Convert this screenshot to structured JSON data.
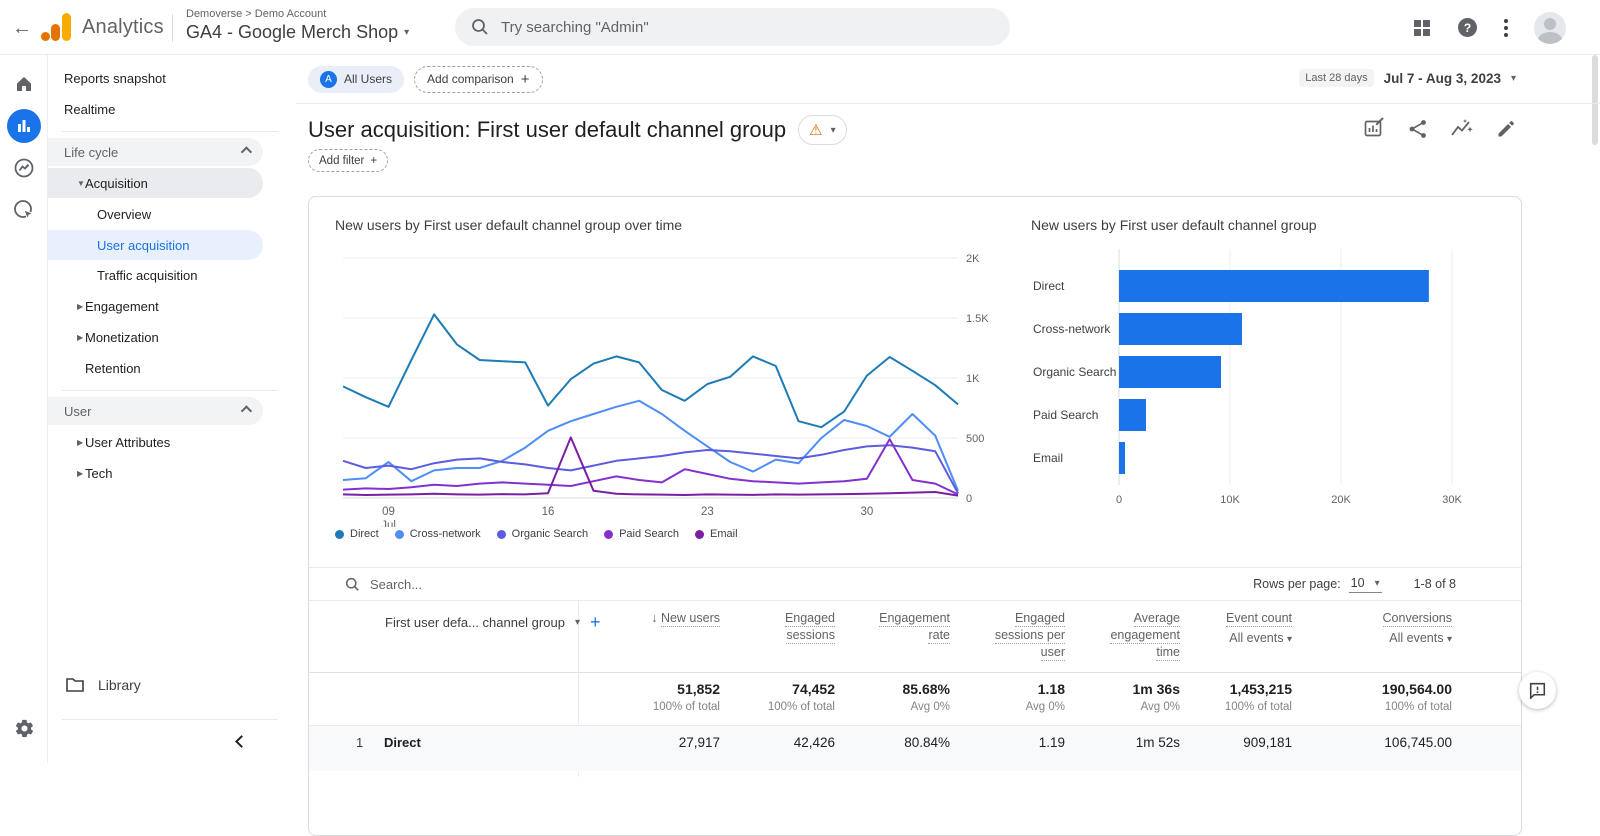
{
  "header": {
    "app_name": "Analytics",
    "breadcrumb": "Demoverse > Demo Account",
    "property_name": "GA4 - Google Merch Shop",
    "search_placeholder": "Try searching \"Admin\""
  },
  "sidebar": {
    "items": [
      {
        "type": "item",
        "label": "Reports snapshot"
      },
      {
        "type": "item",
        "label": "Realtime"
      },
      {
        "type": "divider"
      },
      {
        "type": "section",
        "label": "Life cycle"
      },
      {
        "type": "expand-open",
        "label": "Acquisition"
      },
      {
        "type": "sub",
        "label": "Overview"
      },
      {
        "type": "sub-selected",
        "label": "User acquisition"
      },
      {
        "type": "sub",
        "label": "Traffic acquisition"
      },
      {
        "type": "expand",
        "label": "Engagement"
      },
      {
        "type": "expand",
        "label": "Monetization"
      },
      {
        "type": "item-indent",
        "label": "Retention"
      },
      {
        "type": "divider"
      },
      {
        "type": "section",
        "label": "User"
      },
      {
        "type": "expand",
        "label": "User Attributes"
      },
      {
        "type": "expand",
        "label": "Tech"
      }
    ],
    "library_label": "Library"
  },
  "report": {
    "all_users_chip": "All Users",
    "add_comparison": "Add comparison",
    "title": "User acquisition: First user default channel group",
    "add_filter": "Add filter",
    "date_preset": "Last 28 days",
    "date_range": "Jul 7 - Aug 3, 2023"
  },
  "chart_data": [
    {
      "type": "line",
      "title": "New users by First user default channel group over time",
      "ylabel": "New users",
      "ylim": [
        0,
        2000
      ],
      "yticks": [
        {
          "v": 0,
          "label": "0"
        },
        {
          "v": 500,
          "label": "500"
        },
        {
          "v": 1000,
          "label": "1K"
        },
        {
          "v": 1500,
          "label": "1.5K"
        },
        {
          "v": 2000,
          "label": "2K"
        }
      ],
      "xticks": [
        {
          "i": 2,
          "label": "09",
          "sub": "Jul"
        },
        {
          "i": 9,
          "label": "16"
        },
        {
          "i": 16,
          "label": "23"
        },
        {
          "i": 23,
          "label": "30"
        }
      ],
      "x_range": "Jul 7 - Aug 3, 2023 (28 days)",
      "grid": true,
      "legend_position": "bottom",
      "series": [
        {
          "name": "Direct",
          "color": "#1d7bb5",
          "values": [
            930,
            840,
            760,
            1150,
            1530,
            1280,
            1150,
            1140,
            1130,
            770,
            990,
            1120,
            1180,
            1130,
            900,
            810,
            950,
            1010,
            1180,
            1100,
            640,
            590,
            720,
            1020,
            1175,
            1060,
            940,
            780
          ]
        },
        {
          "name": "Cross-network",
          "color": "#4e8df6",
          "values": [
            150,
            165,
            300,
            140,
            230,
            250,
            250,
            310,
            420,
            560,
            640,
            700,
            760,
            810,
            700,
            560,
            430,
            300,
            220,
            320,
            290,
            500,
            650,
            600,
            510,
            700,
            520,
            60
          ]
        },
        {
          "name": "Organic Search",
          "color": "#5c5ce0",
          "values": [
            310,
            250,
            270,
            240,
            290,
            320,
            330,
            300,
            280,
            250,
            230,
            270,
            310,
            330,
            350,
            380,
            400,
            390,
            370,
            350,
            330,
            360,
            400,
            430,
            440,
            420,
            390,
            40
          ]
        },
        {
          "name": "Paid Search",
          "color": "#8430ce",
          "values": [
            70,
            80,
            75,
            90,
            110,
            100,
            120,
            130,
            120,
            110,
            100,
            140,
            180,
            150,
            130,
            240,
            200,
            160,
            140,
            130,
            120,
            130,
            140,
            160,
            490,
            150,
            120,
            30
          ]
        },
        {
          "name": "Email",
          "color": "#7b1fa2",
          "values": [
            30,
            25,
            28,
            30,
            35,
            30,
            28,
            32,
            30,
            40,
            505,
            60,
            35,
            30,
            28,
            25,
            30,
            28,
            26,
            30,
            28,
            30,
            32,
            35,
            40,
            45,
            50,
            20
          ]
        }
      ]
    },
    {
      "type": "bar",
      "title": "New users by First user default channel group",
      "orientation": "horizontal",
      "categories": [
        "Direct",
        "Cross-network",
        "Organic Search",
        "Paid Search",
        "Email"
      ],
      "values": [
        27917,
        11080,
        9190,
        2430,
        540
      ],
      "xlim": [
        0,
        30000
      ],
      "xticks": [
        {
          "v": 0,
          "label": "0"
        },
        {
          "v": 10000,
          "label": "10K"
        },
        {
          "v": 20000,
          "label": "20K"
        },
        {
          "v": 30000,
          "label": "30K"
        }
      ],
      "bar_color": "#1a73e8",
      "grid": true
    }
  ],
  "table": {
    "search_placeholder": "Search...",
    "rows_per_page_label": "Rows per page:",
    "rows_per_page_value": "10",
    "pagination": "1-8 of 8",
    "dimension_header": "First user defa... channel group",
    "columns": [
      {
        "lines": [
          "New users"
        ],
        "sorted": true,
        "sub": null,
        "total": "51,852",
        "total_sub": "100% of total"
      },
      {
        "lines": [
          "Engaged",
          "sessions"
        ],
        "sub": null,
        "total": "74,452",
        "total_sub": "100% of total"
      },
      {
        "lines": [
          "Engagement",
          "rate"
        ],
        "sub": null,
        "total": "85.68%",
        "total_sub": "Avg 0%"
      },
      {
        "lines": [
          "Engaged",
          "sessions per",
          "user"
        ],
        "sub": null,
        "total": "1.18",
        "total_sub": "Avg 0%"
      },
      {
        "lines": [
          "Average",
          "engagement",
          "time"
        ],
        "sub": null,
        "total": "1m 36s",
        "total_sub": "Avg 0%"
      },
      {
        "lines": [
          "Event count"
        ],
        "sub": "All events",
        "total": "1,453,215",
        "total_sub": "100% of total"
      },
      {
        "lines": [
          "Conversions"
        ],
        "sub": "All events",
        "total": "190,564.00",
        "total_sub": "100% of total"
      }
    ],
    "rows": [
      {
        "num": "1",
        "dimension": "Direct",
        "values": [
          "27,917",
          "42,426",
          "80.84%",
          "1.19",
          "1m 52s",
          "909,181",
          "106,745.00"
        ]
      }
    ]
  }
}
